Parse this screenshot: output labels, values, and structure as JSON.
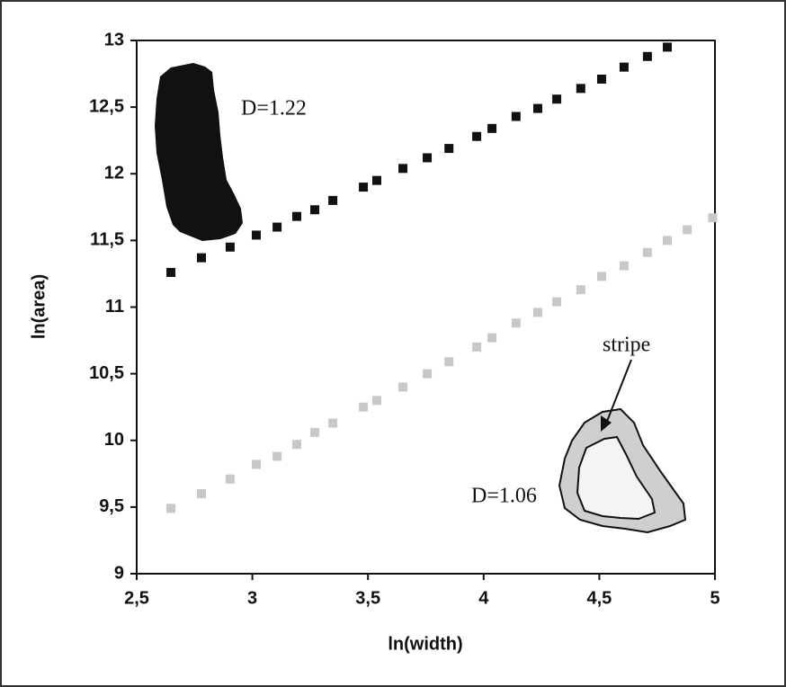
{
  "chart_data": {
    "type": "scatter",
    "x_label": "ln(width)",
    "y_label": "ln(area)",
    "xlim": [
      2.5,
      5
    ],
    "ylim": [
      9,
      13
    ],
    "xticks": [
      {
        "value": 2.5,
        "label": "2,5"
      },
      3,
      {
        "value": 3.5,
        "label": "3,5"
      },
      4,
      {
        "value": 4.5,
        "label": "4,5"
      },
      5
    ],
    "yticks": [
      9,
      {
        "value": 9.5,
        "label": "9,5"
      },
      10,
      {
        "value": 10.5,
        "label": "10,5"
      },
      11,
      {
        "value": 11.5,
        "label": "11,5"
      },
      12,
      {
        "value": 12.5,
        "label": "12,5"
      },
      13
    ],
    "series": [
      {
        "color": "#111111",
        "x": [
          2.648,
          2.78,
          2.904,
          3.017,
          3.107,
          3.192,
          3.27,
          3.348,
          3.48,
          3.538,
          3.651,
          3.756,
          3.85,
          3.97,
          4.036,
          4.14,
          4.234,
          4.316,
          4.42,
          4.51,
          4.607,
          4.708,
          4.794
        ],
        "values": [
          11.26,
          11.37,
          11.45,
          11.54,
          11.6,
          11.68,
          11.73,
          11.8,
          11.9,
          11.95,
          12.04,
          12.12,
          12.19,
          12.28,
          12.34,
          12.43,
          12.49,
          12.56,
          12.64,
          12.71,
          12.8,
          12.88,
          12.95
        ]
      },
      {
        "color": "#c8c8c8",
        "x": [
          2.648,
          2.78,
          2.904,
          3.017,
          3.107,
          3.192,
          3.27,
          3.348,
          3.48,
          3.538,
          3.651,
          3.756,
          3.85,
          3.97,
          4.036,
          4.14,
          4.234,
          4.316,
          4.42,
          4.51,
          4.607,
          4.708,
          4.794,
          4.88,
          4.99
        ],
        "values": [
          9.49,
          9.6,
          9.71,
          9.82,
          9.88,
          9.97,
          10.06,
          10.13,
          10.25,
          10.3,
          10.4,
          10.5,
          10.59,
          10.7,
          10.77,
          10.88,
          10.96,
          11.04,
          11.13,
          11.23,
          11.31,
          11.41,
          11.5,
          11.58,
          11.67
        ]
      }
    ],
    "annotations": [
      "D=1.22",
      "stripe",
      "D=1.06"
    ]
  }
}
